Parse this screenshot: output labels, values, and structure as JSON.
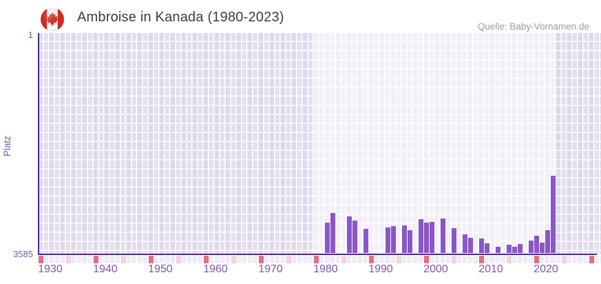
{
  "header": {
    "title": "Ambroise in Kanada (1980-2023)",
    "source": "Quelle: Baby-Vornamen.de",
    "flag_icon": "canada-flag-icon"
  },
  "chart_data": {
    "type": "bar",
    "title": "Ambroise in Kanada (1980-2023)",
    "xlabel": "",
    "ylabel": "Platz",
    "y_axis": {
      "top_tick": "1",
      "bottom_tick": "3585",
      "min": 1,
      "max": 3585,
      "inverted": true
    },
    "x_axis": {
      "ticks": [
        "1930",
        "1940",
        "1950",
        "1960",
        "1970",
        "1980",
        "1990",
        "2000",
        "2010",
        "2020"
      ],
      "range_years": [
        1930,
        2032
      ],
      "decade_marker_years": [
        1930,
        1940,
        1950,
        1960,
        1970,
        1980,
        1990,
        2000,
        2010,
        2020,
        2030
      ],
      "half_decade_marker_years": [
        1935,
        1945,
        1955,
        1965,
        1975,
        1985,
        1995,
        2005,
        2015,
        2025
      ]
    },
    "highlight_range_years": [
      1980,
      2024
    ],
    "grid": true,
    "legend": null,
    "series": [
      {
        "name": "Platz",
        "points": [
          {
            "year": 1982,
            "rank": 3060
          },
          {
            "year": 1983,
            "rank": 2905
          },
          {
            "year": 1986,
            "rank": 2960
          },
          {
            "year": 1987,
            "rank": 3030
          },
          {
            "year": 1989,
            "rank": 3160
          },
          {
            "year": 1993,
            "rank": 3140
          },
          {
            "year": 1994,
            "rank": 3125
          },
          {
            "year": 1996,
            "rank": 3110
          },
          {
            "year": 1997,
            "rank": 3190
          },
          {
            "year": 1999,
            "rank": 3005
          },
          {
            "year": 2000,
            "rank": 3060
          },
          {
            "year": 2001,
            "rank": 3050
          },
          {
            "year": 2003,
            "rank": 3000
          },
          {
            "year": 2005,
            "rank": 3155
          },
          {
            "year": 2007,
            "rank": 3255
          },
          {
            "year": 2008,
            "rank": 3310
          },
          {
            "year": 2010,
            "rank": 3320
          },
          {
            "year": 2011,
            "rank": 3405
          },
          {
            "year": 2013,
            "rank": 3460
          },
          {
            "year": 2015,
            "rank": 3425
          },
          {
            "year": 2016,
            "rank": 3460
          },
          {
            "year": 2017,
            "rank": 3415
          },
          {
            "year": 2019,
            "rank": 3360
          },
          {
            "year": 2020,
            "rank": 3280
          },
          {
            "year": 2021,
            "rank": 3395
          },
          {
            "year": 2022,
            "rank": 3190
          },
          {
            "year": 2023,
            "rank": 2290
          }
        ]
      }
    ],
    "style": {
      "bar_color": "#8b55c7",
      "axis_line_color": "#4e2b86",
      "tick_label_color": "#7e56ad",
      "decade_cell_color": "#e0707e",
      "half_decade_cell_color": "#f3d2dd",
      "title_color": "#3b3b3b",
      "source_color": "#9b9b9b",
      "flag_red": "#d52b1e"
    }
  }
}
